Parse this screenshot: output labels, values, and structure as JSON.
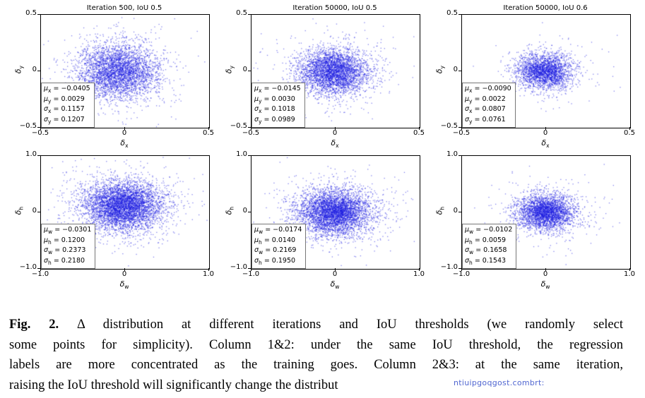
{
  "figure": {
    "caption": {
      "prefix": "Fig. 2.",
      "line1_rest": " Δ distribution at different iterations and IoU thresholds (we randomly select",
      "line2": "some points for simplicity). Column 1&2: under the same IoU threshold, the regression",
      "line3": "labels are more concentrated as the training goes. Column 2&3: at the same iteration,",
      "line4": "raising the IoU threshold will significantly change the distribut",
      "watermark": "ntiuipgoqgost.combrt:"
    }
  },
  "chart_data": {
    "type": "scatter",
    "point_color": "#1b1be0",
    "legend": "none",
    "grid": false,
    "panels": [
      {
        "row": 0,
        "title": "Iteration 500, IoU 0.5",
        "xlabel_sym": "δ",
        "xlabel_sub": "x",
        "ylabel_sym": "δ",
        "ylabel_sub": "y",
        "xlim": [
          -0.5,
          0.5
        ],
        "ylim": [
          -0.5,
          0.5
        ],
        "xticks": [
          "−0.5",
          "0",
          "0.5"
        ],
        "yticks": [
          "0.5",
          "0",
          "−0.5"
        ],
        "mu_x": -0.0405,
        "mu_y": 0.0029,
        "sigma_x": 0.1157,
        "sigma_y": 0.1207,
        "n_points": 3800,
        "seed": 11,
        "stats": [
          {
            "s": "μ",
            "sub": "x",
            "v": "−0.0405"
          },
          {
            "s": "μ",
            "sub": "y",
            "v": "0.0029"
          },
          {
            "s": "σ",
            "sub": "x",
            "v": "0.1157"
          },
          {
            "s": "σ",
            "sub": "y",
            "v": "0.1207"
          }
        ]
      },
      {
        "row": 0,
        "title": "Iteration 50000, IoU 0.5",
        "xlabel_sym": "δ",
        "xlabel_sub": "x",
        "ylabel_sym": "δ",
        "ylabel_sub": "y",
        "xlim": [
          -0.5,
          0.5
        ],
        "ylim": [
          -0.5,
          0.5
        ],
        "xticks": [
          "−0.5",
          "0",
          "0.5"
        ],
        "yticks": [
          "0.5",
          "0",
          "−0.5"
        ],
        "mu_x": -0.0145,
        "mu_y": 0.003,
        "sigma_x": 0.1018,
        "sigma_y": 0.0989,
        "n_points": 3800,
        "seed": 22,
        "stats": [
          {
            "s": "μ",
            "sub": "x",
            "v": "−0.0145"
          },
          {
            "s": "μ",
            "sub": "y",
            "v": "0.0030"
          },
          {
            "s": "σ",
            "sub": "x",
            "v": "0.1018"
          },
          {
            "s": "σ",
            "sub": "y",
            "v": "0.0989"
          }
        ]
      },
      {
        "row": 0,
        "title": "Iteration 50000, IoU 0.6",
        "xlabel_sym": "δ",
        "xlabel_sub": "x",
        "ylabel_sym": "δ",
        "ylabel_sub": "y",
        "xlim": [
          -0.5,
          0.5
        ],
        "ylim": [
          -0.5,
          0.5
        ],
        "xticks": [
          "−0.5",
          "0",
          "0.5"
        ],
        "yticks": [
          "0.5",
          "0",
          "−0.5"
        ],
        "mu_x": -0.009,
        "mu_y": 0.0022,
        "sigma_x": 0.0807,
        "sigma_y": 0.0761,
        "n_points": 2600,
        "seed": 33,
        "stats": [
          {
            "s": "μ",
            "sub": "x",
            "v": "−0.0090"
          },
          {
            "s": "μ",
            "sub": "y",
            "v": "0.0022"
          },
          {
            "s": "σ",
            "sub": "x",
            "v": "0.0807"
          },
          {
            "s": "σ",
            "sub": "y",
            "v": "0.0761"
          }
        ]
      },
      {
        "row": 1,
        "title": "",
        "xlabel_sym": "δ",
        "xlabel_sub": "w",
        "ylabel_sym": "δ",
        "ylabel_sub": "h",
        "xlim": [
          -1.0,
          1.0
        ],
        "ylim": [
          -1.0,
          1.0
        ],
        "xticks": [
          "−1.0",
          "0",
          "1.0"
        ],
        "yticks": [
          "1.0",
          "0",
          "−1.0"
        ],
        "mu_x": -0.0301,
        "mu_y": 0.12,
        "sigma_x": 0.2373,
        "sigma_y": 0.218,
        "n_points": 5200,
        "seed": 44,
        "stats": [
          {
            "s": "μ",
            "sub": "w",
            "v": "−0.0301"
          },
          {
            "s": "μ",
            "sub": "h",
            "v": "0.1200"
          },
          {
            "s": "σ",
            "sub": "w",
            "v": "0.2373"
          },
          {
            "s": "σ",
            "sub": "h",
            "v": "0.2180"
          }
        ]
      },
      {
        "row": 1,
        "title": "",
        "xlabel_sym": "δ",
        "xlabel_sub": "w",
        "ylabel_sym": "δ",
        "ylabel_sub": "h",
        "xlim": [
          -1.0,
          1.0
        ],
        "ylim": [
          -1.0,
          1.0
        ],
        "xticks": [
          "−1.0",
          "0",
          "1.0"
        ],
        "yticks": [
          "1.0",
          "0",
          "−1.0"
        ],
        "mu_x": -0.0174,
        "mu_y": 0.014,
        "sigma_x": 0.2169,
        "sigma_y": 0.195,
        "n_points": 4600,
        "seed": 55,
        "stats": [
          {
            "s": "μ",
            "sub": "w",
            "v": "−0.0174"
          },
          {
            "s": "μ",
            "sub": "h",
            "v": "0.0140"
          },
          {
            "s": "σ",
            "sub": "w",
            "v": "0.2169"
          },
          {
            "s": "σ",
            "sub": "h",
            "v": "0.1950"
          }
        ]
      },
      {
        "row": 1,
        "title": "",
        "xlabel_sym": "δ",
        "xlabel_sub": "w",
        "ylabel_sym": "δ",
        "ylabel_sub": "h",
        "xlim": [
          -1.0,
          1.0
        ],
        "ylim": [
          -1.0,
          1.0
        ],
        "xticks": [
          "−1.0",
          "0",
          "1.0"
        ],
        "yticks": [
          "1.0",
          "0",
          "−1.0"
        ],
        "mu_x": -0.0102,
        "mu_y": 0.0059,
        "sigma_x": 0.1658,
        "sigma_y": 0.1543,
        "n_points": 3200,
        "seed": 66,
        "stats": [
          {
            "s": "μ",
            "sub": "w",
            "v": "−0.0102"
          },
          {
            "s": "μ",
            "sub": "h",
            "v": "0.0059"
          },
          {
            "s": "σ",
            "sub": "w",
            "v": "0.1658"
          },
          {
            "s": "σ",
            "sub": "h",
            "v": "0.1543"
          }
        ]
      }
    ]
  }
}
